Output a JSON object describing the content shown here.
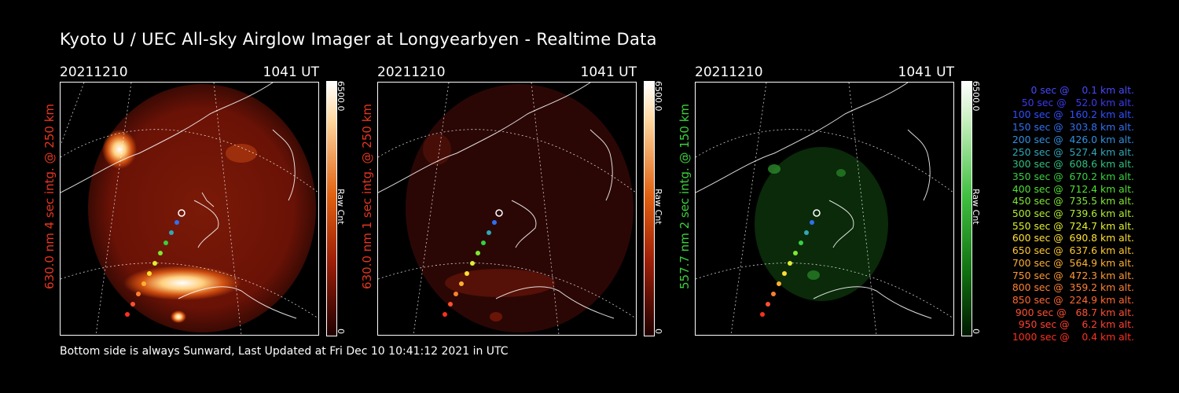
{
  "title": "Kyoto U / UEC All-sky Airglow Imager at Longyearbyen - Realtime Data",
  "footer": "Bottom side is always Sunward, Last Updated at Fri Dec 10 10:41:12 2021 in UTC",
  "panels": [
    {
      "date": "20211210",
      "time": "1041 UT",
      "ylabel": "630.0 nm 4 sec intg. @ 250 km",
      "ylabel_color": "#e8361e",
      "cbar_max": "6500.0",
      "cbar_min": "0",
      "cbar_unit": "Raw Cnt",
      "cbar_color": "#c84010"
    },
    {
      "date": "20211210",
      "time": "1041 UT",
      "ylabel": "630.0 nm 1 sec intg. @ 250 km",
      "ylabel_color": "#e8361e",
      "cbar_max": "6500.0",
      "cbar_min": "0",
      "cbar_unit": "Raw Cnt",
      "cbar_color": "#c84010"
    },
    {
      "date": "20211210",
      "time": "1041 UT",
      "ylabel": "557.7 nm 2 sec intg. @ 150 km",
      "ylabel_color": "#3ad13a",
      "cbar_max": "6500.0",
      "cbar_min": "0",
      "cbar_unit": "Raw Cnt",
      "cbar_color": "#30c030"
    }
  ],
  "legend": [
    {
      "text": "   0 sec @    0.1 km alt.",
      "color": "#4848ff"
    },
    {
      "text": "  50 sec @   52.0 km alt.",
      "color": "#3a3af0"
    },
    {
      "text": " 100 sec @  160.2 km alt.",
      "color": "#3050ff"
    },
    {
      "text": " 150 sec @  303.8 km alt.",
      "color": "#3070f0"
    },
    {
      "text": " 200 sec @  426.0 km alt.",
      "color": "#3090e0"
    },
    {
      "text": " 250 sec @  527.4 km alt.",
      "color": "#30a8b8"
    },
    {
      "text": " 300 sec @  608.6 km alt.",
      "color": "#30c080"
    },
    {
      "text": " 350 sec @  670.2 km alt.",
      "color": "#38d040"
    },
    {
      "text": " 400 sec @  712.4 km alt.",
      "color": "#50e030"
    },
    {
      "text": " 450 sec @  735.5 km alt.",
      "color": "#80e830"
    },
    {
      "text": " 500 sec @  739.6 km alt.",
      "color": "#b0f030"
    },
    {
      "text": " 550 sec @  724.7 km alt.",
      "color": "#e0f030"
    },
    {
      "text": " 600 sec @  690.8 km alt.",
      "color": "#ffe030"
    },
    {
      "text": " 650 sec @  637.6 km alt.",
      "color": "#ffc830"
    },
    {
      "text": " 700 sec @  564.9 km alt.",
      "color": "#ffb030"
    },
    {
      "text": " 750 sec @  472.3 km alt.",
      "color": "#ff9830"
    },
    {
      "text": " 800 sec @  359.2 km alt.",
      "color": "#ff8030"
    },
    {
      "text": " 850 sec @  224.9 km alt.",
      "color": "#ff6830"
    },
    {
      "text": " 900 sec @   68.7 km alt.",
      "color": "#ff5030"
    },
    {
      "text": " 950 sec @    6.2 km alt.",
      "color": "#ff4030"
    },
    {
      "text": "1000 sec @    0.4 km alt.",
      "color": "#ff3020"
    }
  ]
}
